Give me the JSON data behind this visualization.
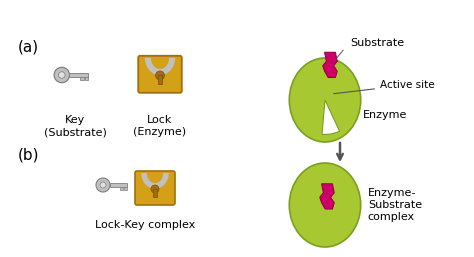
{
  "bg_color": "#ffffff",
  "enzyme_color": "#a8c832",
  "substrate_color": "#cc0066",
  "lock_body_color": "#d4a017",
  "lock_shackle_color": "#c0c0c0",
  "key_color": "#c0c0c0",
  "arrow_color": "#555555",
  "text_color": "#000000",
  "label_a": "(a)",
  "label_b": "(b)",
  "label_key": "Key\n(Substrate)",
  "label_lock": "Lock\n(Enzyme)",
  "label_complex": "Lock-Key complex",
  "label_substrate": "Substrate",
  "label_active": "Active site",
  "label_enzyme": "Enzyme",
  "label_es_complex": "Enzyme-\nSubstrate\ncomplex"
}
